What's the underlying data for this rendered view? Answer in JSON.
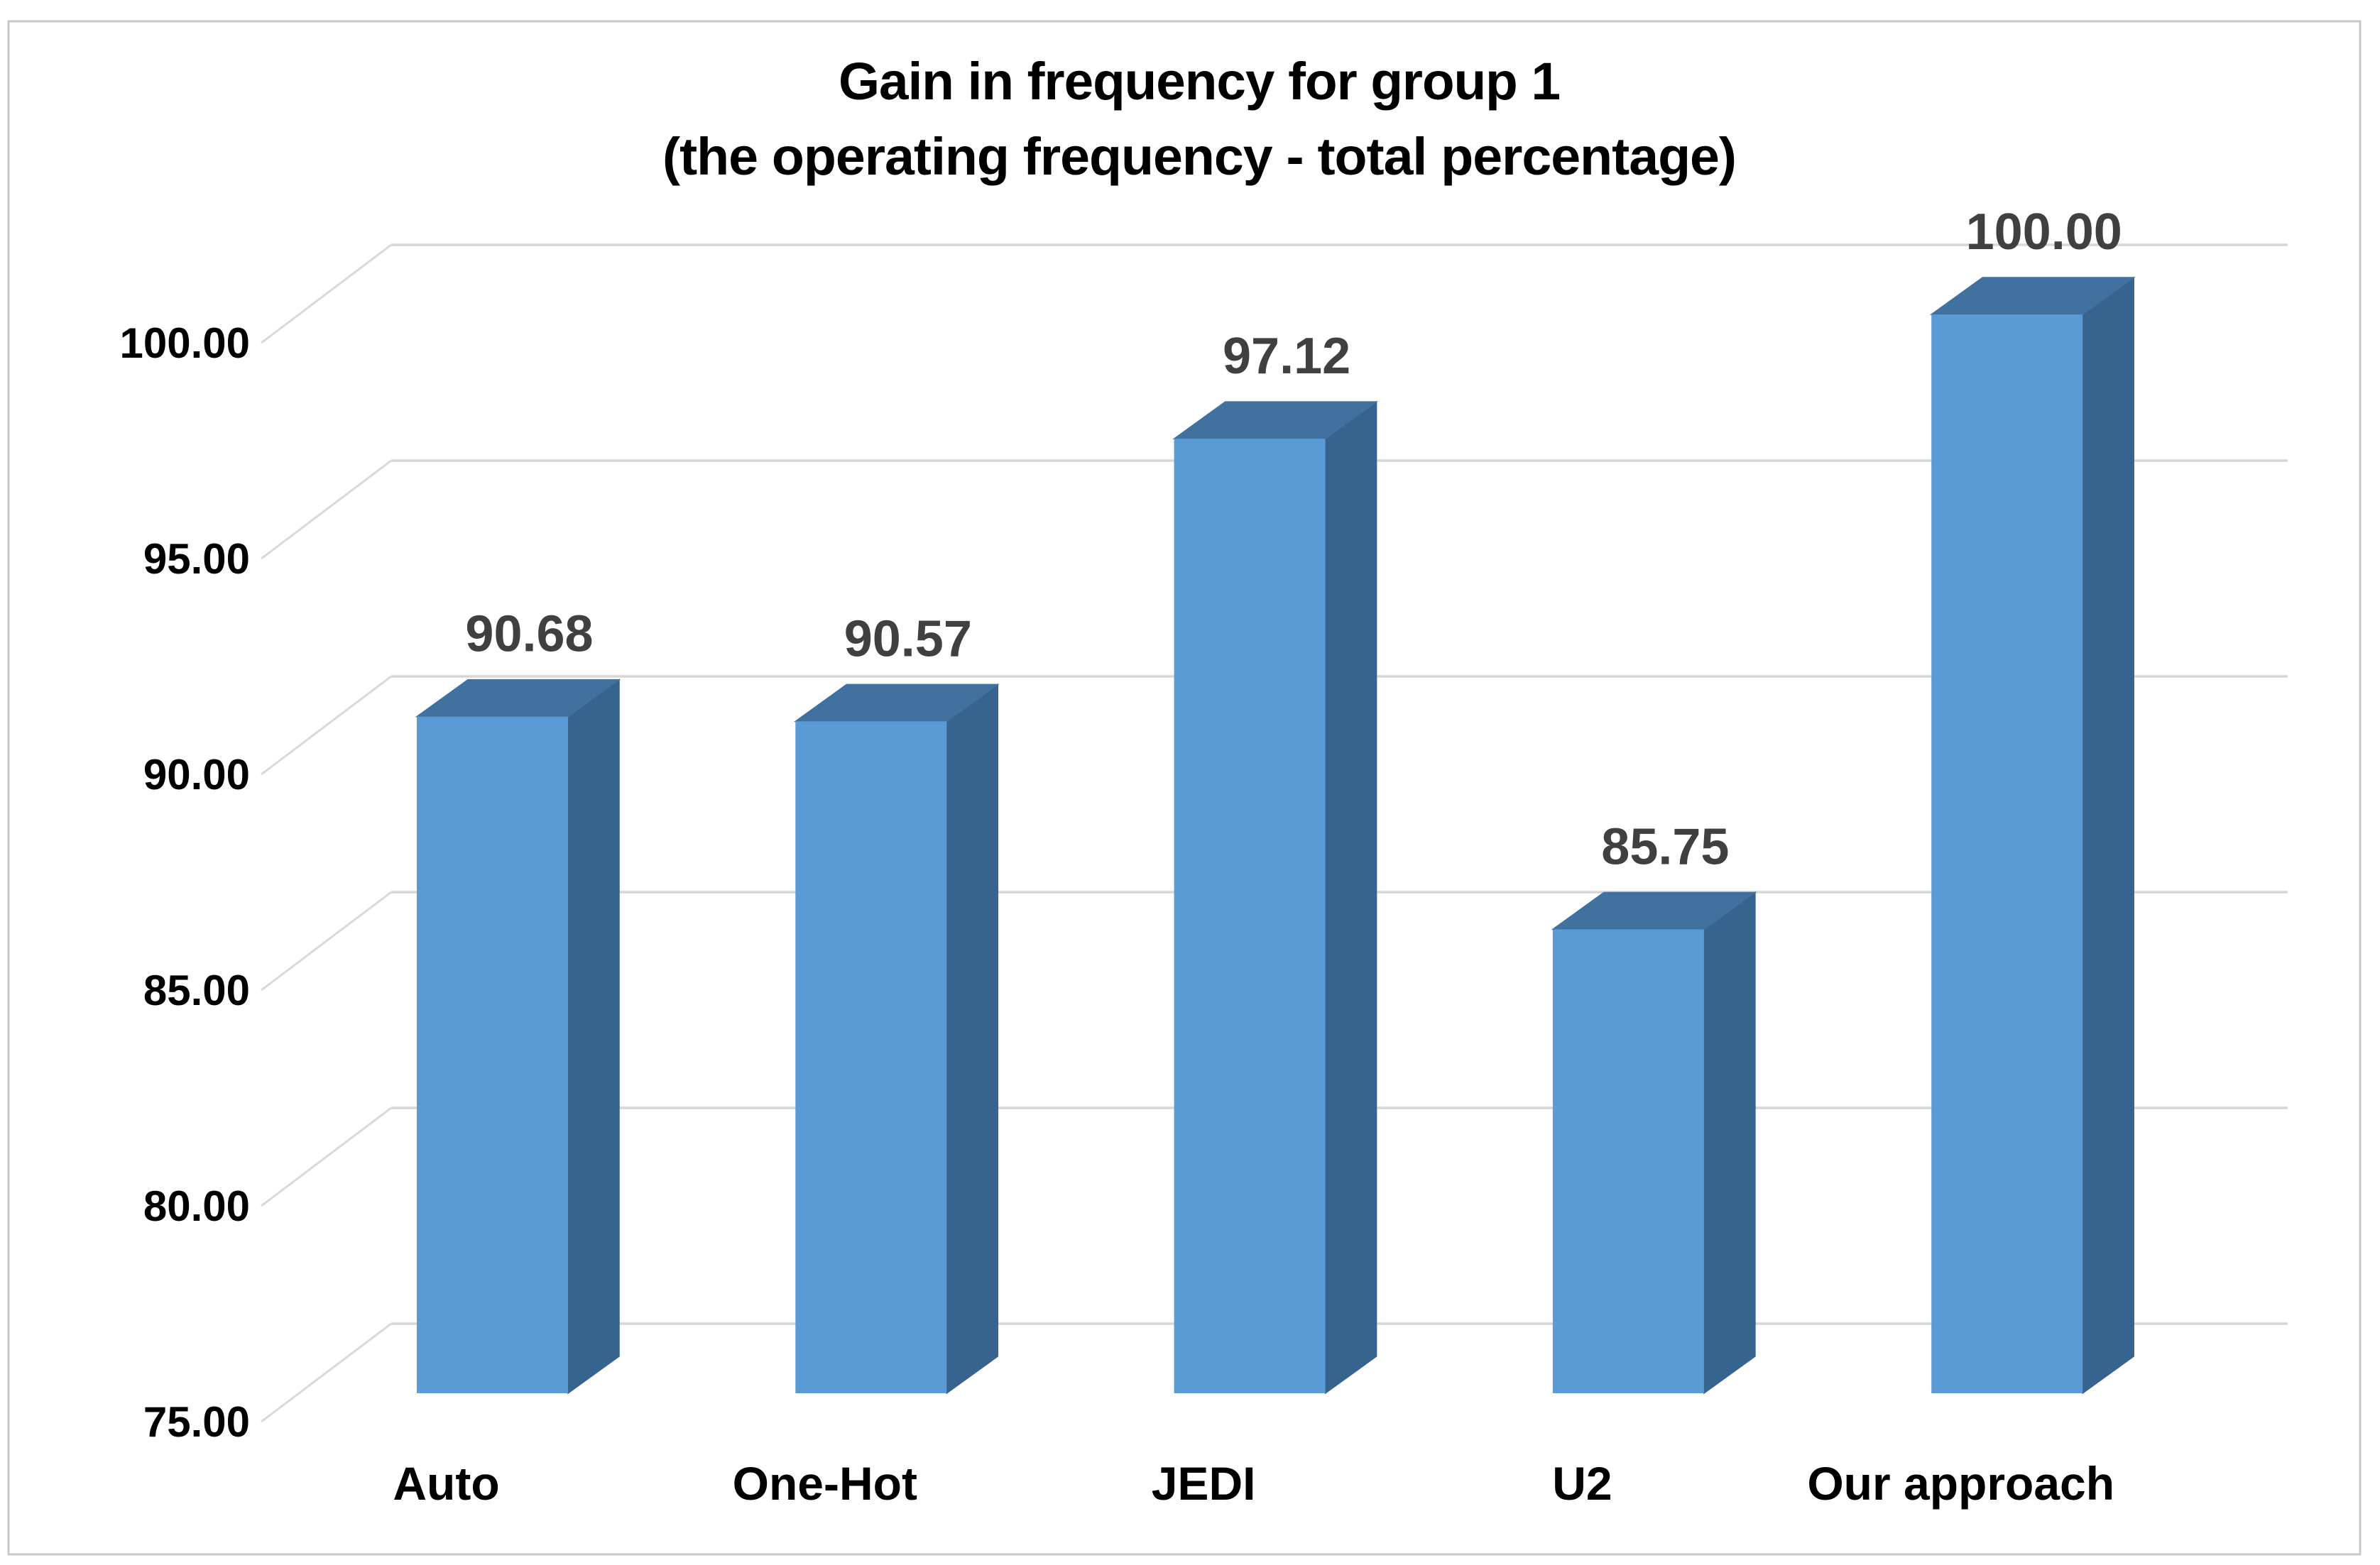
{
  "chart_data": {
    "type": "bar",
    "projection": "3d-oblique-column",
    "title_lines": [
      "Gain in frequency for group 1",
      "(the operating frequency - total percentage)"
    ],
    "categories": [
      "Auto",
      "One-Hot",
      "JEDI",
      "U2",
      "Our approach"
    ],
    "values": [
      90.68,
      90.57,
      97.12,
      85.75,
      100.0
    ],
    "value_labels": [
      "90.68",
      "90.57",
      "97.12",
      "85.75",
      "100.00"
    ],
    "xlabel": "",
    "ylabel": "",
    "ylim": [
      75,
      100
    ],
    "ytick_step": 5,
    "yticks": [
      {
        "value": 100,
        "label": "100.00"
      },
      {
        "value": 95,
        "label": "95.00"
      },
      {
        "value": 90,
        "label": "90.00"
      },
      {
        "value": 85,
        "label": "85.00"
      },
      {
        "value": 80,
        "label": "80.00"
      },
      {
        "value": 75,
        "label": "75.00"
      }
    ],
    "grid": true,
    "legend": false,
    "colors": {
      "bar_front": "#5B9BD5",
      "bar_top": "#40719F",
      "bar_side": "#36648F",
      "gridline": "#D6D6D6",
      "diagonal": "#D9D9D9",
      "chart_border": "#C9C9C9",
      "value_label_text": "#404040",
      "axis_text": "#000000",
      "title_text": "#000000",
      "background": "#FFFFFF"
    }
  }
}
